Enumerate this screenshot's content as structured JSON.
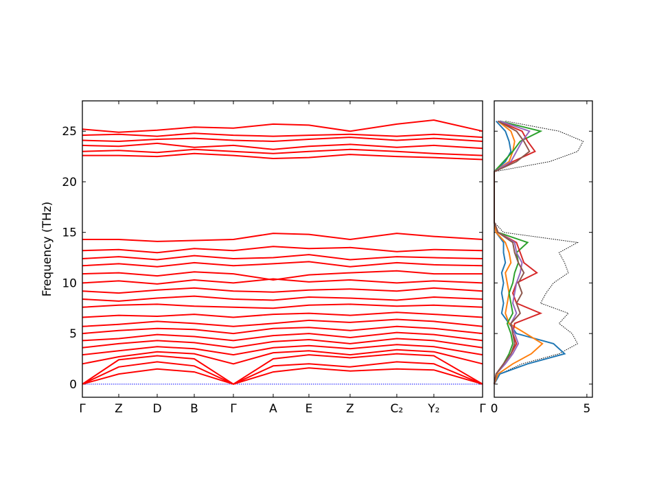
{
  "chart_data": [
    {
      "type": "line",
      "ylabel": "Frequency (THz)",
      "x": [
        0,
        0.53,
        1.09,
        1.63,
        2.2,
        2.78,
        3.3,
        3.9,
        4.58,
        5.12,
        5.83
      ],
      "xlim": [
        0,
        5.83
      ],
      "xticks": [
        {
          "value": 0,
          "label": "Γ"
        },
        {
          "value": 0.53,
          "label": "Z"
        },
        {
          "value": 1.09,
          "label": "D"
        },
        {
          "value": 1.63,
          "label": "B"
        },
        {
          "value": 2.2,
          "label": "Γ"
        },
        {
          "value": 2.78,
          "label": "A"
        },
        {
          "value": 3.3,
          "label": "E"
        },
        {
          "value": 3.9,
          "label": "Z"
        },
        {
          "value": 4.58,
          "label": "C₂"
        },
        {
          "value": 5.12,
          "label": "Y₂"
        },
        {
          "value": 5.83,
          "label": "Γ"
        }
      ],
      "ylim": [
        -1.3,
        28
      ],
      "yticks": [
        0,
        5,
        10,
        15,
        20,
        25
      ],
      "color": "#ff0000",
      "hline": {
        "value": 0,
        "color": "#0000ff"
      },
      "series": [
        {
          "values": [
            0,
            1.0,
            1.5,
            1.2,
            0,
            1.2,
            1.6,
            1.3,
            1.5,
            1.4,
            0
          ]
        },
        {
          "values": [
            0,
            1.7,
            2.2,
            1.8,
            0,
            1.8,
            2.0,
            1.7,
            2.2,
            2.0,
            0
          ]
        },
        {
          "values": [
            0,
            2.4,
            2.8,
            2.5,
            0,
            2.5,
            2.9,
            2.6,
            3.0,
            2.8,
            0
          ]
        },
        {
          "values": [
            2.0,
            2.7,
            3.2,
            3.0,
            2.0,
            3.1,
            3.3,
            2.9,
            3.4,
            3.2,
            2.0
          ]
        },
        {
          "values": [
            2.9,
            3.3,
            3.7,
            3.5,
            2.9,
            3.6,
            3.8,
            3.5,
            3.9,
            3.7,
            2.9
          ]
        },
        {
          "values": [
            3.6,
            4.0,
            4.3,
            4.1,
            3.6,
            4.2,
            4.4,
            4.0,
            4.5,
            4.3,
            3.6
          ]
        },
        {
          "values": [
            4.3,
            4.5,
            4.9,
            4.7,
            4.3,
            4.8,
            5.0,
            4.6,
            5.1,
            4.9,
            4.3
          ]
        },
        {
          "values": [
            5.0,
            5.3,
            5.5,
            5.4,
            5.0,
            5.5,
            5.6,
            5.3,
            5.7,
            5.5,
            5.0
          ]
        },
        {
          "values": [
            5.7,
            5.9,
            6.2,
            6.0,
            5.7,
            6.0,
            6.3,
            6.1,
            6.4,
            6.2,
            5.7
          ]
        },
        {
          "values": [
            6.6,
            6.8,
            6.7,
            6.9,
            6.6,
            6.9,
            7.0,
            6.8,
            7.1,
            6.9,
            6.6
          ]
        },
        {
          "values": [
            7.6,
            7.8,
            7.9,
            7.7,
            7.6,
            7.5,
            7.8,
            7.9,
            7.7,
            7.8,
            7.6
          ]
        },
        {
          "values": [
            8.4,
            8.2,
            8.5,
            8.7,
            8.4,
            8.3,
            8.6,
            8.5,
            8.3,
            8.6,
            8.4
          ]
        },
        {
          "values": [
            9.2,
            9.0,
            9.3,
            9.5,
            9.2,
            9.1,
            9.3,
            9.4,
            9.2,
            9.5,
            9.2
          ]
        },
        {
          "values": [
            10.0,
            10.2,
            9.9,
            10.3,
            10.0,
            10.4,
            10.1,
            10.3,
            10.0,
            10.2,
            10.0
          ]
        },
        {
          "values": [
            10.9,
            11.0,
            10.7,
            11.1,
            10.9,
            10.3,
            10.8,
            11.0,
            11.2,
            10.9,
            10.9
          ]
        },
        {
          "values": [
            11.7,
            11.9,
            11.6,
            12.0,
            11.7,
            11.9,
            12.1,
            11.6,
            12.0,
            11.8,
            11.7
          ]
        },
        {
          "values": [
            12.4,
            12.6,
            12.3,
            12.7,
            12.4,
            12.5,
            12.8,
            12.3,
            12.6,
            12.5,
            12.4
          ]
        },
        {
          "values": [
            13.2,
            13.3,
            13.0,
            13.4,
            13.2,
            13.6,
            13.4,
            13.5,
            13.1,
            13.3,
            13.2
          ]
        },
        {
          "values": [
            14.3,
            14.3,
            14.1,
            14.2,
            14.3,
            14.9,
            14.8,
            14.3,
            14.9,
            14.6,
            14.3
          ]
        },
        {
          "values": [
            22.6,
            22.6,
            22.5,
            22.8,
            22.6,
            22.3,
            22.4,
            22.7,
            22.5,
            22.4,
            22.2
          ]
        },
        {
          "values": [
            23.0,
            23.1,
            22.9,
            23.2,
            23.0,
            22.8,
            23.0,
            23.2,
            23.0,
            22.8,
            22.6
          ]
        },
        {
          "values": [
            23.6,
            23.5,
            23.8,
            23.4,
            23.6,
            23.2,
            23.5,
            23.7,
            23.4,
            23.6,
            23.3
          ]
        },
        {
          "values": [
            24.1,
            24.0,
            24.2,
            24.3,
            24.1,
            24.0,
            24.2,
            24.4,
            24.1,
            24.3,
            24.0
          ]
        },
        {
          "values": [
            24.6,
            24.7,
            24.5,
            24.8,
            24.6,
            24.5,
            24.6,
            24.7,
            24.5,
            24.7,
            24.4
          ]
        },
        {
          "values": [
            25.2,
            24.9,
            25.1,
            25.4,
            25.3,
            25.7,
            25.6,
            25.0,
            25.7,
            26.1,
            25.0
          ]
        }
      ]
    },
    {
      "type": "dos",
      "y": [
        0,
        1,
        2,
        3,
        4,
        5,
        6,
        7,
        8,
        9,
        10,
        11,
        12,
        13,
        14,
        15,
        16,
        17,
        18,
        19,
        20,
        21,
        22,
        23,
        24,
        25,
        26
      ],
      "ylim": [
        -1.3,
        28
      ],
      "yticks": [
        0,
        5,
        10,
        15,
        20,
        25
      ],
      "xlim": [
        0,
        5.3
      ],
      "xticks": [
        0,
        5
      ],
      "series": [
        {
          "color": "#000000",
          "dotted": true,
          "values": [
            0,
            0.3,
            1.5,
            3.5,
            4.5,
            4.2,
            3.5,
            4.0,
            2.5,
            2.8,
            3.2,
            4.0,
            3.8,
            3.5,
            4.5,
            0.5,
            0,
            0,
            0,
            0,
            0,
            0,
            3.0,
            4.5,
            4.8,
            3.5,
            0.6
          ]
        },
        {
          "color": "#1f77b4",
          "values": [
            0,
            0.3,
            1.8,
            3.8,
            3.2,
            1.2,
            0.8,
            0.4,
            0.5,
            0.4,
            0.5,
            0.4,
            0.6,
            0.5,
            0.5,
            0.1,
            0,
            0,
            0,
            0,
            0,
            0,
            0.6,
            0.9,
            0.8,
            0.6,
            0.1
          ]
        },
        {
          "color": "#ff7f0e",
          "values": [
            0,
            0.2,
            1.0,
            2.0,
            2.6,
            1.7,
            0.8,
            0.6,
            0.7,
            0.8,
            0.7,
            0.6,
            0.9,
            0.8,
            0.6,
            0.1,
            0,
            0,
            0,
            0,
            0,
            0,
            0.8,
            1.0,
            1.1,
            0.9,
            0.2
          ]
        },
        {
          "color": "#2ca02c",
          "values": [
            0,
            0.1,
            0.5,
            0.8,
            1.0,
            0.9,
            0.7,
            1.0,
            0.9,
            0.8,
            1.0,
            1.1,
            1.3,
            1.2,
            1.8,
            0.2,
            0,
            0,
            0,
            0,
            0,
            0,
            0.5,
            1.0,
            1.4,
            2.5,
            0.3
          ]
        },
        {
          "color": "#d62728",
          "values": [
            0,
            0.1,
            0.5,
            0.9,
            1.2,
            1.0,
            1.1,
            2.5,
            1.2,
            1.0,
            1.2,
            2.3,
            1.6,
            1.4,
            1.2,
            0.2,
            0,
            0,
            0,
            0,
            0,
            0,
            1.0,
            2.2,
            1.8,
            1.5,
            0.2
          ]
        },
        {
          "color": "#9467bd",
          "values": [
            0,
            0.1,
            0.6,
            1.0,
            1.3,
            1.1,
            0.9,
            1.2,
            1.0,
            1.1,
            1.2,
            1.4,
            1.5,
            1.2,
            1.1,
            0.2,
            0,
            0,
            0,
            0,
            0,
            0,
            0.9,
            1.2,
            1.5,
            1.9,
            0.3
          ]
        },
        {
          "color": "#8c564b",
          "values": [
            0,
            0.1,
            0.5,
            0.9,
            1.1,
            1.0,
            0.9,
            1.4,
            1.2,
            1.5,
            1.3,
            1.6,
            1.3,
            1.1,
            1.0,
            0.2,
            0,
            0,
            0,
            0,
            0,
            0,
            1.2,
            1.9,
            1.6,
            1.2,
            0.2
          ]
        }
      ]
    }
  ]
}
